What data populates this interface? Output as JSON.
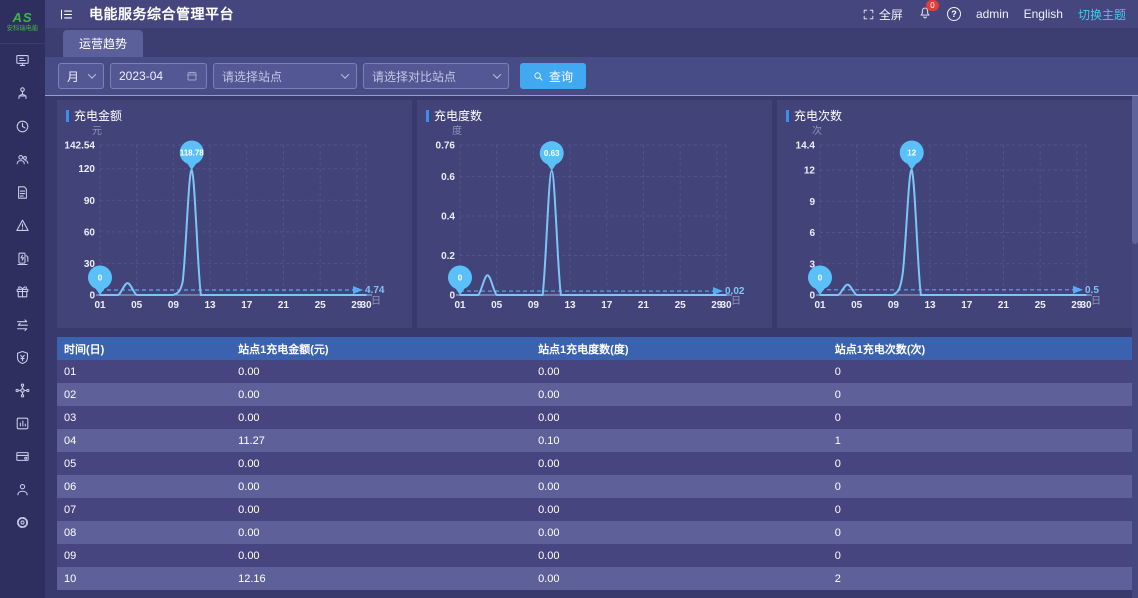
{
  "app": {
    "logo_mark": "AS",
    "logo_subtitle": "安科瑞电能",
    "title": "电能服务综合管理平台"
  },
  "header": {
    "fullscreen": "全屏",
    "notification_count": "0",
    "help": "?",
    "user": "admin",
    "language": "English",
    "theme_switch": "切换主题"
  },
  "tabs": [
    {
      "label": "运营趋势"
    }
  ],
  "filters": {
    "period": "月",
    "date": "2023-04",
    "station_placeholder": "请选择站点",
    "compare_placeholder": "请选择对比站点",
    "search": "查询"
  },
  "icons": {
    "sidebar": [
      "screen-icon",
      "org-icon",
      "clock-icon",
      "users-icon",
      "document-icon",
      "alarm-icon",
      "charging-pile-icon",
      "gift-icon",
      "transactions-icon",
      "finance-shield-icon",
      "topology-icon",
      "meter-icon",
      "device-icon",
      "operator-icon",
      "settings-gear-icon"
    ],
    "header": [
      "menu-fold-icon",
      "fullscreen-icon",
      "bell-icon",
      "help-icon"
    ],
    "filter": [
      "chevron-down-icon",
      "calendar-icon",
      "search-icon"
    ]
  },
  "colors": {
    "accent": "#3a8ef0",
    "line": "#7dc5f7",
    "pin": "#5bc0f8",
    "average_line": "#53aef5",
    "button": "#41a9f0",
    "theme_link": "#45c9f0",
    "badge": "#e23c3c",
    "table_header": "#3a62ae",
    "row_odd": "#474580",
    "row_even": "#5e6199",
    "logo_green": "#3db648"
  },
  "chart_data": [
    {
      "type": "line",
      "title": "充电金额",
      "y_unit": "元",
      "x_unit": "日",
      "categories": [
        "01",
        "02",
        "03",
        "04",
        "05",
        "06",
        "07",
        "08",
        "09",
        "10",
        "11",
        "12",
        "13",
        "14",
        "15",
        "16",
        "17",
        "18",
        "19",
        "20",
        "21",
        "22",
        "23",
        "24",
        "25",
        "26",
        "27",
        "28",
        "29",
        "30"
      ],
      "values": [
        0,
        0,
        0,
        11.27,
        0,
        0,
        0,
        0,
        0,
        12.16,
        118.78,
        0,
        0,
        0,
        0,
        0,
        0,
        0,
        0,
        0,
        0,
        0,
        0,
        0,
        0,
        0,
        0,
        0,
        0,
        0
      ],
      "ylim": [
        0,
        142.54
      ],
      "y_ticks": [
        "0",
        "30",
        "60",
        "90",
        "120",
        "142.54"
      ],
      "x_tick_days": [
        1,
        5,
        9,
        13,
        17,
        21,
        25,
        29,
        30
      ],
      "x_tick_labels": [
        "01",
        "05",
        "09",
        "13",
        "17",
        "21",
        "25",
        "29",
        "30"
      ],
      "average": 4.74,
      "average_label": "4.74",
      "max_marker": {
        "day": 11,
        "label": "118.78"
      },
      "min_marker": {
        "day": 1,
        "label": "0"
      },
      "line_color": "#7dc5f7",
      "grid": true,
      "legend": false
    },
    {
      "type": "line",
      "title": "充电度数",
      "y_unit": "度",
      "x_unit": "日",
      "categories": [
        "01",
        "02",
        "03",
        "04",
        "05",
        "06",
        "07",
        "08",
        "09",
        "10",
        "11",
        "12",
        "13",
        "14",
        "15",
        "16",
        "17",
        "18",
        "19",
        "20",
        "21",
        "22",
        "23",
        "24",
        "25",
        "26",
        "27",
        "28",
        "29",
        "30"
      ],
      "values": [
        0,
        0,
        0,
        0.1,
        0,
        0,
        0,
        0,
        0,
        0,
        0.63,
        0,
        0,
        0,
        0,
        0,
        0,
        0,
        0,
        0,
        0,
        0,
        0,
        0,
        0,
        0,
        0,
        0,
        0,
        0
      ],
      "ylim": [
        0,
        0.76
      ],
      "y_ticks": [
        "0",
        "0.2",
        "0.4",
        "0.6",
        "0.76"
      ],
      "x_tick_days": [
        1,
        5,
        9,
        13,
        17,
        21,
        25,
        29,
        30
      ],
      "x_tick_labels": [
        "01",
        "05",
        "09",
        "13",
        "17",
        "21",
        "25",
        "29",
        "30"
      ],
      "average": 0.02,
      "average_label": "0.02",
      "max_marker": {
        "day": 11,
        "label": "0.63"
      },
      "min_marker": {
        "day": 1,
        "label": "0"
      },
      "line_color": "#7dc5f7",
      "grid": true,
      "legend": false
    },
    {
      "type": "line",
      "title": "充电次数",
      "y_unit": "次",
      "x_unit": "日",
      "categories": [
        "01",
        "02",
        "03",
        "04",
        "05",
        "06",
        "07",
        "08",
        "09",
        "10",
        "11",
        "12",
        "13",
        "14",
        "15",
        "16",
        "17",
        "18",
        "19",
        "20",
        "21",
        "22",
        "23",
        "24",
        "25",
        "26",
        "27",
        "28",
        "29",
        "30"
      ],
      "values": [
        0,
        0,
        0,
        1,
        0,
        0,
        0,
        0,
        0,
        2,
        12,
        0,
        0,
        0,
        0,
        0,
        0,
        0,
        0,
        0,
        0,
        0,
        0,
        0,
        0,
        0,
        0,
        0,
        0,
        0
      ],
      "ylim": [
        0,
        14.4
      ],
      "y_ticks": [
        "0",
        "3",
        "6",
        "9",
        "12",
        "14.4"
      ],
      "x_tick_days": [
        1,
        5,
        9,
        13,
        17,
        21,
        25,
        29,
        30
      ],
      "x_tick_labels": [
        "01",
        "05",
        "09",
        "13",
        "17",
        "21",
        "25",
        "29",
        "30"
      ],
      "average": 0.5,
      "average_label": "0.5",
      "max_marker": {
        "day": 11,
        "label": "12"
      },
      "min_marker": {
        "day": 1,
        "label": "0"
      },
      "line_color": "#7dc5f7",
      "grid": true,
      "legend": false
    }
  ],
  "table": {
    "columns": [
      "时间(日)",
      "站点1充电金额(元)",
      "站点1充电度数(度)",
      "站点1充电次数(次)"
    ],
    "rows": [
      [
        "01",
        "0.00",
        "0.00",
        "0"
      ],
      [
        "02",
        "0.00",
        "0.00",
        "0"
      ],
      [
        "03",
        "0.00",
        "0.00",
        "0"
      ],
      [
        "04",
        "11.27",
        "0.10",
        "1"
      ],
      [
        "05",
        "0.00",
        "0.00",
        "0"
      ],
      [
        "06",
        "0.00",
        "0.00",
        "0"
      ],
      [
        "07",
        "0.00",
        "0.00",
        "0"
      ],
      [
        "08",
        "0.00",
        "0.00",
        "0"
      ],
      [
        "09",
        "0.00",
        "0.00",
        "0"
      ],
      [
        "10",
        "12.16",
        "0.00",
        "2"
      ]
    ]
  }
}
